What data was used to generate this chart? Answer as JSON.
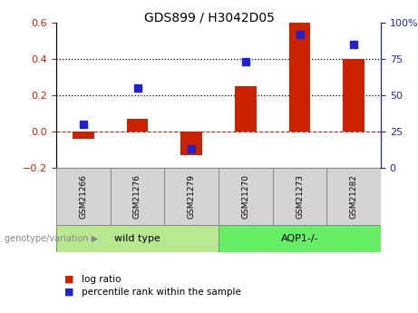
{
  "title": "GDS899 / H3042D05",
  "samples": [
    "GSM21266",
    "GSM21276",
    "GSM21279",
    "GSM21270",
    "GSM21273",
    "GSM21282"
  ],
  "log_ratios": [
    -0.04,
    0.07,
    -0.13,
    0.25,
    0.6,
    0.4
  ],
  "percentile_ranks": [
    30,
    55,
    13,
    73,
    92,
    85
  ],
  "groups": [
    {
      "label": "wild type",
      "start": 0,
      "end": 3,
      "color": "#b8e890"
    },
    {
      "label": "AQP1-/-",
      "start": 3,
      "end": 6,
      "color": "#66ee66"
    }
  ],
  "left_ylim": [
    -0.2,
    0.6
  ],
  "right_ylim": [
    0,
    100
  ],
  "left_yticks": [
    -0.2,
    0.0,
    0.2,
    0.4,
    0.6
  ],
  "right_yticks": [
    0,
    25,
    50,
    75,
    100
  ],
  "bar_color": "#cc2200",
  "dot_color": "#2222cc",
  "hline_color": "#cc2200",
  "dotted_line_color": "#000000",
  "left_tick_color": "#cc2200",
  "right_tick_color": "#2222cc",
  "genotype_label": "genotype/variation",
  "bar_width": 0.4,
  "dot_size": 40,
  "background_color": "#ffffff",
  "plot_bg_color": "#ffffff",
  "sample_box_color": "#d4d4d4",
  "title_fontsize": 10,
  "tick_fontsize": 8,
  "sample_fontsize": 6.5,
  "group_fontsize": 8,
  "legend_fontsize": 7.5
}
